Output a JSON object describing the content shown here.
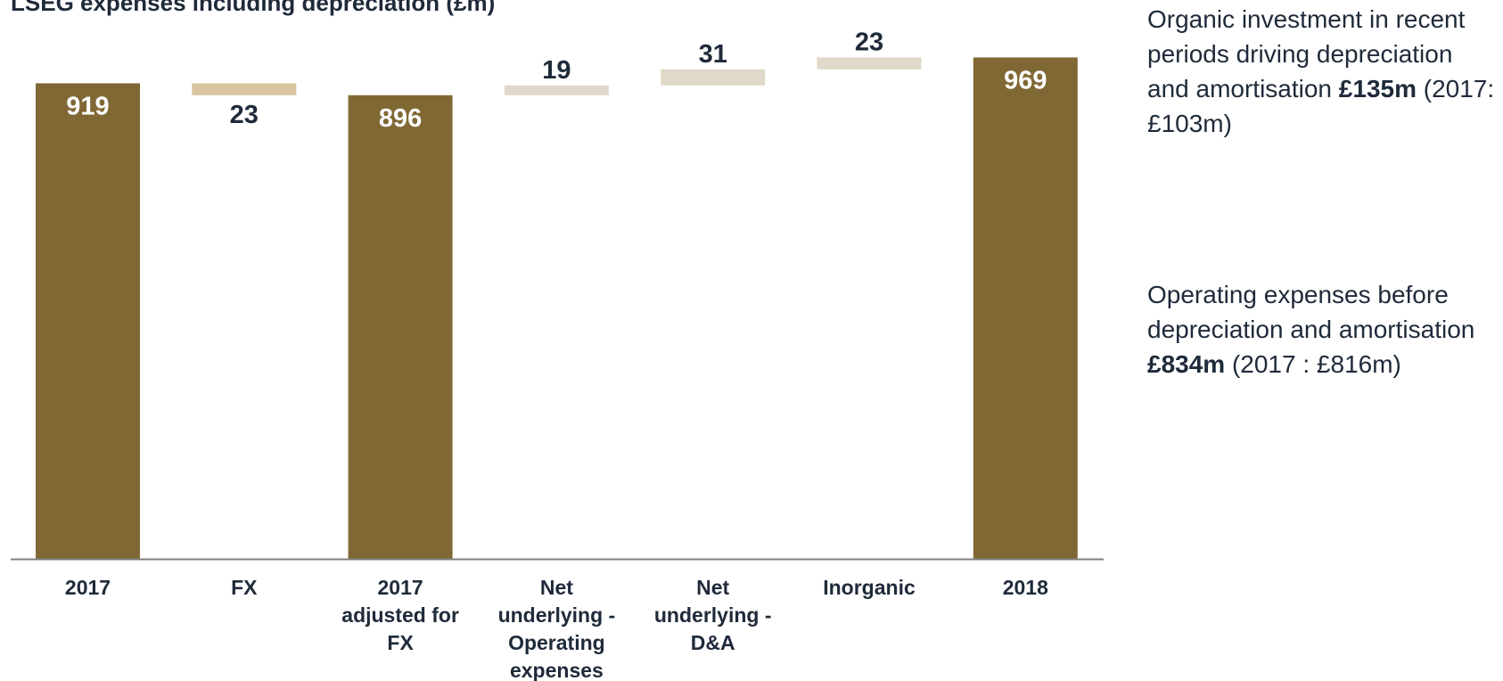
{
  "chart_data": {
    "type": "bar",
    "subtype": "waterfall",
    "title": "LSEG expenses including depreciation (£m)",
    "categories": [
      "2017",
      "FX",
      "2017 adjusted for FX",
      "Net underlying - Operating expenses",
      "Net underlying - D&A",
      "Inorganic",
      "2018"
    ],
    "category_lines": [
      [
        "2017"
      ],
      [
        "FX"
      ],
      [
        "2017",
        "adjusted for",
        "FX"
      ],
      [
        "Net",
        "underlying -",
        "Operating",
        "expenses"
      ],
      [
        "Net",
        "underlying -",
        "D&A"
      ],
      [
        "Inorganic"
      ],
      [
        "2018"
      ]
    ],
    "values": [
      919,
      -23,
      896,
      19,
      31,
      23,
      969
    ],
    "value_labels": [
      "919",
      "23",
      "896",
      "19",
      "31",
      "23",
      "969"
    ],
    "bar_kind": [
      "total",
      "decrease",
      "total",
      "increase",
      "increase",
      "increase",
      "total"
    ],
    "ylim": [
      0,
      1030
    ],
    "xlabel": "",
    "ylabel": "",
    "grid": false,
    "legend": "none",
    "colors": {
      "total": "#806835",
      "decrease": "#d9c6a0",
      "increase": "#e0d8c8",
      "total_label": "#ffffff",
      "step_label": "#1f2a3a",
      "axis": "#808080"
    }
  },
  "notes": [
    {
      "pre": "Organic investment in recent periods driving depreciation and amortisation ",
      "bold": "£135m",
      "post": " (2017: £103m)"
    },
    {
      "pre": "Operating expenses before depreciation and amortisation ",
      "bold": "£834m",
      "post": " (2017 : £816m)"
    }
  ]
}
